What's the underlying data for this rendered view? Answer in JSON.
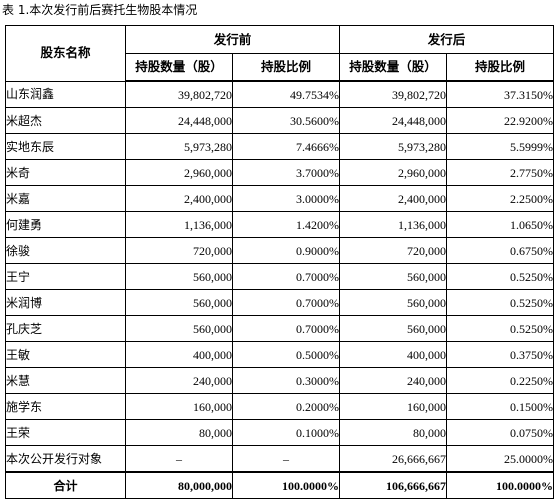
{
  "caption": "表 1.本次发行前后赛托生物股本情况",
  "headers": {
    "shareholder_name": "股东名称",
    "before_issue": "发行前",
    "after_issue": "发行后",
    "shares_held": "持股数量（股）",
    "holding_ratio": "持股比例"
  },
  "rows": [
    {
      "name": "山东润鑫",
      "before_shares": "39,802,720",
      "before_ratio": "49.7534%",
      "after_shares": "39,802,720",
      "after_ratio": "37.3150%"
    },
    {
      "name": "米超杰",
      "before_shares": "24,448,000",
      "before_ratio": "30.5600%",
      "after_shares": "24,448,000",
      "after_ratio": "22.9200%"
    },
    {
      "name": "实地东辰",
      "before_shares": "5,973,280",
      "before_ratio": "7.4666%",
      "after_shares": "5,973,280",
      "after_ratio": "5.5999%"
    },
    {
      "name": "米奇",
      "before_shares": "2,960,000",
      "before_ratio": "3.7000%",
      "after_shares": "2,960,000",
      "after_ratio": "2.7750%"
    },
    {
      "name": "米嘉",
      "before_shares": "2,400,000",
      "before_ratio": "3.0000%",
      "after_shares": "2,400,000",
      "after_ratio": "2.2500%"
    },
    {
      "name": "何建勇",
      "before_shares": "1,136,000",
      "before_ratio": "1.4200%",
      "after_shares": "1,136,000",
      "after_ratio": "1.0650%"
    },
    {
      "name": "徐骏",
      "before_shares": "720,000",
      "before_ratio": "0.9000%",
      "after_shares": "720,000",
      "after_ratio": "0.6750%"
    },
    {
      "name": "王宁",
      "before_shares": "560,000",
      "before_ratio": "0.7000%",
      "after_shares": "560,000",
      "after_ratio": "0.5250%"
    },
    {
      "name": "米润博",
      "before_shares": "560,000",
      "before_ratio": "0.7000%",
      "after_shares": "560,000",
      "after_ratio": "0.5250%"
    },
    {
      "name": "孔庆芝",
      "before_shares": "560,000",
      "before_ratio": "0.7000%",
      "after_shares": "560,000",
      "after_ratio": "0.5250%"
    },
    {
      "name": "王敏",
      "before_shares": "400,000",
      "before_ratio": "0.5000%",
      "after_shares": "400,000",
      "after_ratio": "0.3750%"
    },
    {
      "name": "米慧",
      "before_shares": "240,000",
      "before_ratio": "0.3000%",
      "after_shares": "240,000",
      "after_ratio": "0.2250%"
    },
    {
      "name": "施学东",
      "before_shares": "160,000",
      "before_ratio": "0.2000%",
      "after_shares": "160,000",
      "after_ratio": "0.1500%"
    },
    {
      "name": "王荣",
      "before_shares": "80,000",
      "before_ratio": "0.1000%",
      "after_shares": "80,000",
      "after_ratio": "0.0750%"
    },
    {
      "name": "本次公开发行对象",
      "before_shares": "–",
      "before_ratio": "–",
      "after_shares": "26,666,667",
      "after_ratio": "25.0000%"
    }
  ],
  "total": {
    "name": "合计",
    "before_shares": "80,000,000",
    "before_ratio": "100.0000%",
    "after_shares": "106,666,667",
    "after_ratio": "100.0000%"
  }
}
